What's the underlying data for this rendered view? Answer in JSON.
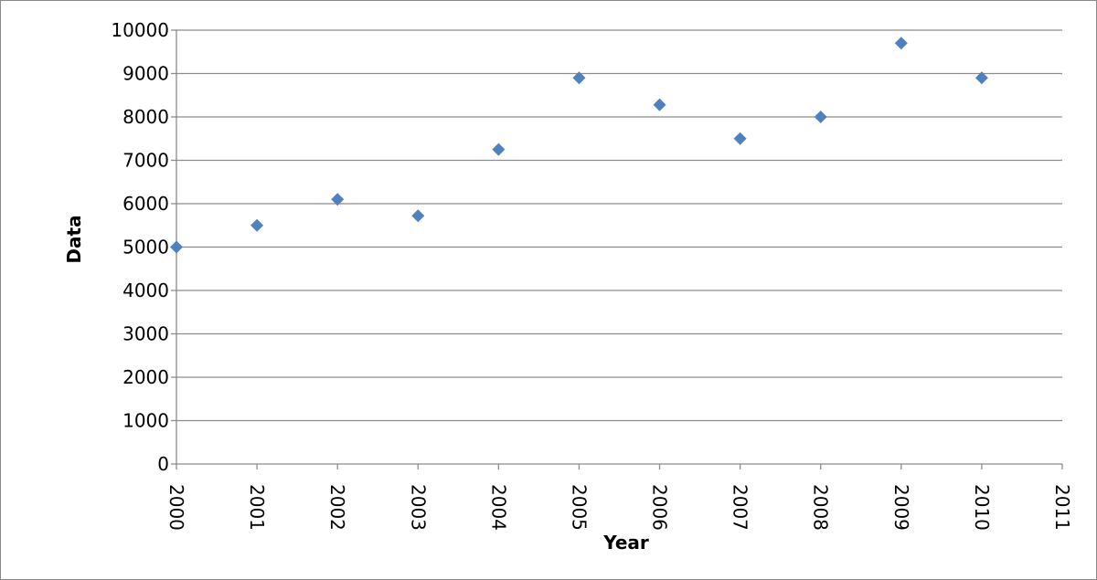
{
  "chart_data": {
    "type": "scatter",
    "title": "",
    "xlabel": "Year",
    "ylabel": "Data",
    "xlim": [
      2000,
      2011
    ],
    "ylim": [
      0,
      10000
    ],
    "x_ticks": [
      "2000",
      "2001",
      "2002",
      "2003",
      "2004",
      "2005",
      "2006",
      "2007",
      "2008",
      "2009",
      "2010",
      "2011"
    ],
    "y_ticks": [
      "0",
      "1000",
      "2000",
      "3000",
      "4000",
      "5000",
      "6000",
      "7000",
      "8000",
      "9000",
      "10000"
    ],
    "grid": true,
    "legend": "none",
    "marker": "diamond",
    "marker_color": "#4f81bd",
    "series": [
      {
        "x": [
          2000,
          2001,
          2002,
          2003,
          2004,
          2005,
          2006,
          2007,
          2008,
          2009,
          2010
        ],
        "y": [
          5000,
          5500,
          6100,
          5720,
          7250,
          8900,
          8280,
          7500,
          8000,
          9700,
          8900
        ]
      }
    ]
  }
}
